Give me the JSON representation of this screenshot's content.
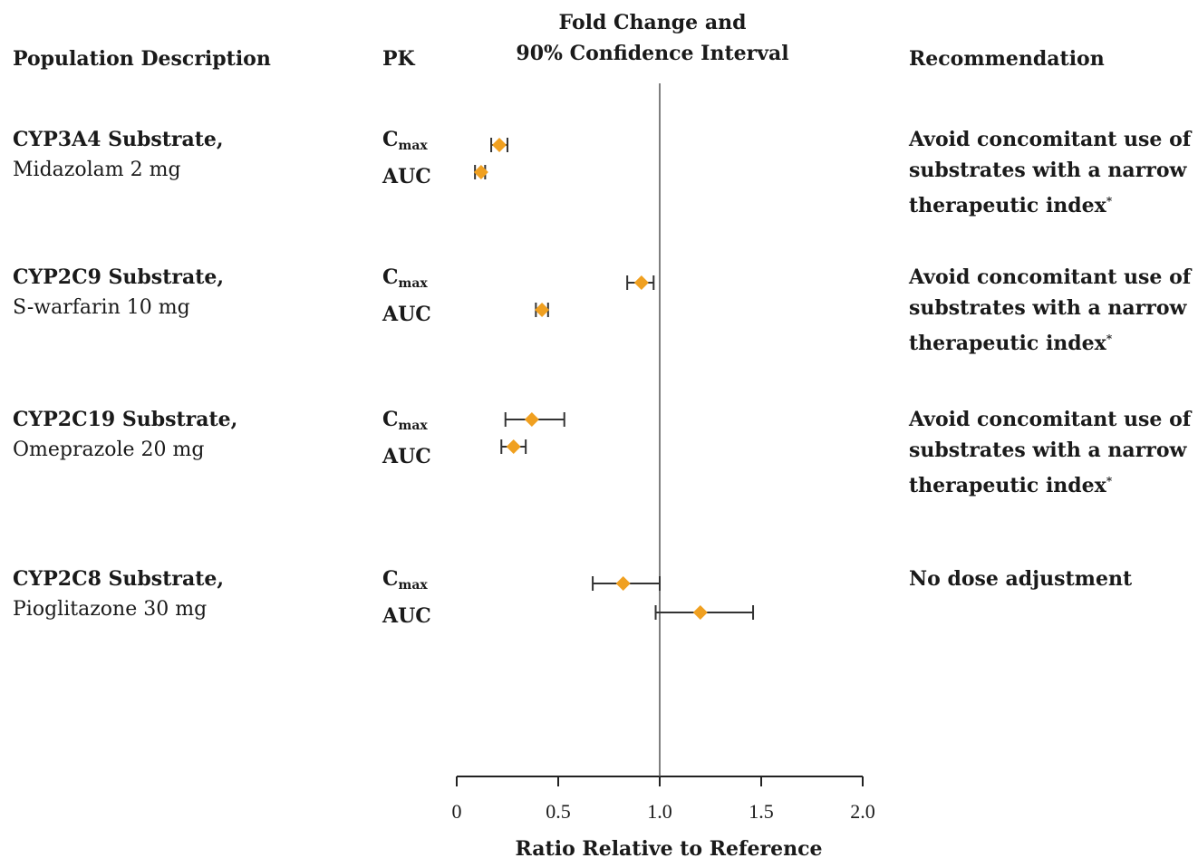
{
  "headers": {
    "population": "Population Description",
    "pk": "PK",
    "fold_line1": "Fold Change and",
    "fold_line2": "90% Confidence Interval",
    "recommendation": "Recommendation"
  },
  "rows": [
    {
      "substrate": "CYP3A4 Substrate,",
      "drug": "Midazolam 2 mg",
      "pk1_main": "C",
      "pk1_sub": "max",
      "pk2": "AUC",
      "rec_lines": [
        "Avoid  concomitant use of",
        "substrates with a narrow",
        "therapeutic index"
      ],
      "rec_mark": "*"
    },
    {
      "substrate": "CYP2C9 Substrate,",
      "drug": "S-warfarin 10 mg",
      "pk1_main": "C",
      "pk1_sub": "max",
      "pk2": "AUC",
      "rec_lines": [
        "Avoid  concomitant use of",
        "substrates with a narrow",
        "therapeutic index"
      ],
      "rec_mark": "*"
    },
    {
      "substrate": "CYP2C19 Substrate,",
      "drug": "Omeprazole 20 mg",
      "pk1_main": "C",
      "pk1_sub": "max",
      "pk2": "AUC",
      "rec_lines": [
        "Avoid  concomitant use of",
        "substrates with a narrow",
        "therapeutic index"
      ],
      "rec_mark": "*"
    },
    {
      "substrate": "CYP2C8 Substrate,",
      "drug": "Pioglitazone  30 mg",
      "pk1_main": "C",
      "pk1_sub": "max",
      "pk2": "AUC",
      "rec_lines": [
        "No dose adjustment"
      ],
      "rec_mark": ""
    }
  ],
  "chart_data": {
    "type": "scatter",
    "subtype": "forest-plot",
    "title": "Fold Change and 90% Confidence Interval",
    "xlabel": "Ratio Relative to Reference",
    "xlim": [
      0,
      2.0
    ],
    "xticks": [
      "0",
      "0.5",
      "1.0",
      "1.5",
      "2.0"
    ],
    "xtick_values": [
      0,
      0.5,
      1.0,
      1.5,
      2.0
    ],
    "reference_line": 1.0,
    "marker_color": "#F0A020",
    "points": [
      {
        "row": "CYP3A4 Substrate,",
        "pk": "Cmax",
        "estimate": 0.21,
        "ci_low": 0.17,
        "ci_high": 0.25
      },
      {
        "row": "CYP3A4 Substrate,",
        "pk": "AUC",
        "estimate": 0.12,
        "ci_low": 0.09,
        "ci_high": 0.14
      },
      {
        "row": "CYP2C9 Substrate,",
        "pk": "Cmax",
        "estimate": 0.91,
        "ci_low": 0.84,
        "ci_high": 0.97
      },
      {
        "row": "CYP2C9 Substrate,",
        "pk": "AUC",
        "estimate": 0.42,
        "ci_low": 0.39,
        "ci_high": 0.45
      },
      {
        "row": "CYP2C19 Substrate,",
        "pk": "Cmax",
        "estimate": 0.37,
        "ci_low": 0.24,
        "ci_high": 0.53
      },
      {
        "row": "CYP2C19 Substrate,",
        "pk": "AUC",
        "estimate": 0.28,
        "ci_low": 0.22,
        "ci_high": 0.34
      },
      {
        "row": "CYP2C8 Substrate,",
        "pk": "Cmax",
        "estimate": 0.82,
        "ci_low": 0.67,
        "ci_high": 1.0
      },
      {
        "row": "CYP2C8 Substrate,",
        "pk": "AUC",
        "estimate": 1.2,
        "ci_low": 0.98,
        "ci_high": 1.46
      }
    ]
  }
}
